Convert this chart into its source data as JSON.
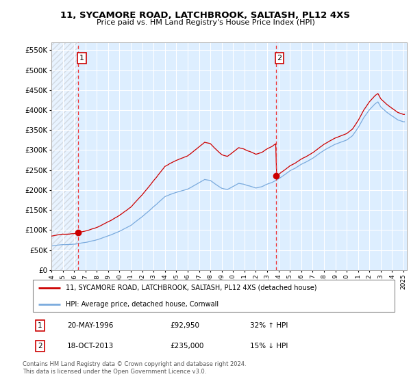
{
  "title": "11, SYCAMORE ROAD, LATCHBROOK, SALTASH, PL12 4XS",
  "subtitle": "Price paid vs. HM Land Registry's House Price Index (HPI)",
  "legend_line1": "11, SYCAMORE ROAD, LATCHBROOK, SALTASH, PL12 4XS (detached house)",
  "legend_line2": "HPI: Average price, detached house, Cornwall",
  "footnote": "Contains HM Land Registry data © Crown copyright and database right 2024.\nThis data is licensed under the Open Government Licence v3.0.",
  "transaction1_date": "20-MAY-1996",
  "transaction1_price": "£92,950",
  "transaction1_hpi": "32% ↑ HPI",
  "transaction2_date": "18-OCT-2013",
  "transaction2_price": "£235,000",
  "transaction2_hpi": "15% ↓ HPI",
  "price_color": "#cc0000",
  "hpi_color": "#7aaadd",
  "dashed_line_color": "#ee3333",
  "bg_color": "#ddeeff",
  "plot_bg_color": "#ddeeff",
  "transaction1_x": 1996.37,
  "transaction1_y": 92950,
  "transaction2_x": 2013.79,
  "transaction2_y": 235000,
  "ylim": [
    0,
    570000
  ],
  "yticks": [
    0,
    50000,
    100000,
    150000,
    200000,
    250000,
    300000,
    350000,
    400000,
    450000,
    500000,
    550000
  ],
  "ytick_labels": [
    "£0",
    "£50K",
    "£100K",
    "£150K",
    "£200K",
    "£250K",
    "£300K",
    "£350K",
    "£400K",
    "£450K",
    "£500K",
    "£550K"
  ],
  "xmin": 1994.0,
  "xmax": 2025.3
}
